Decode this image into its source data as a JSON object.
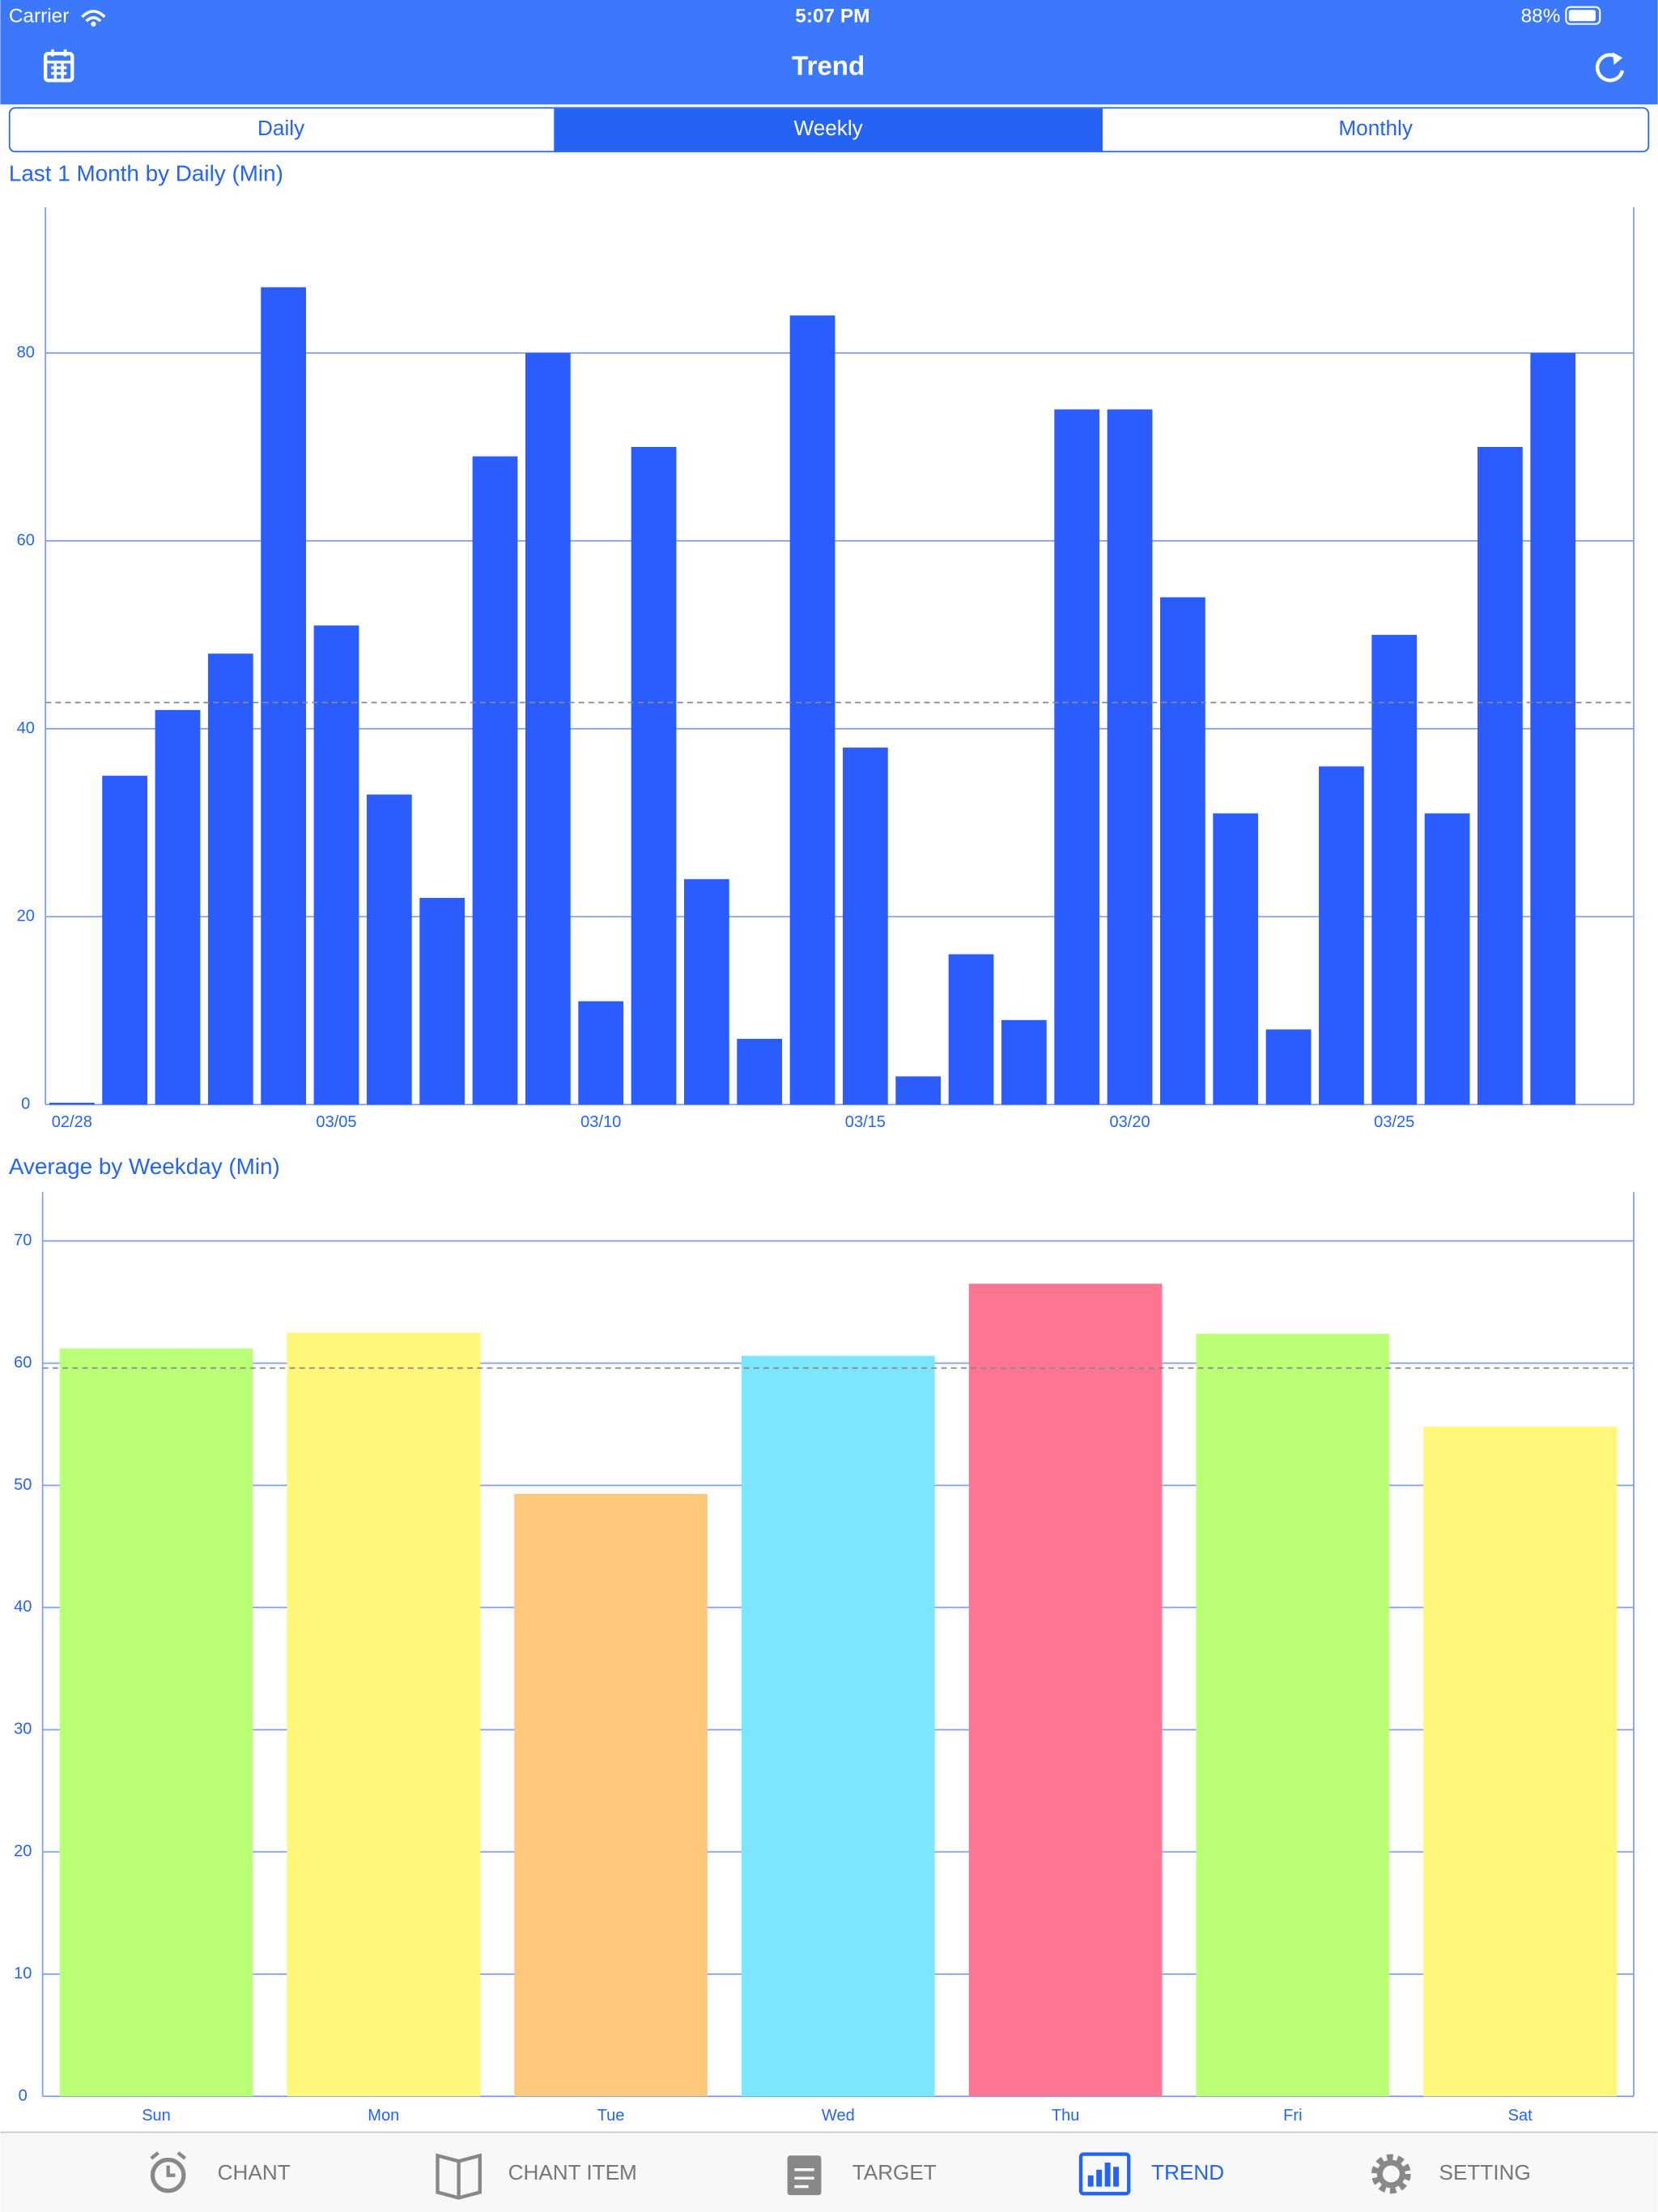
{
  "status_bar": {
    "carrier": "Carrier",
    "time": "5:07 PM",
    "battery": "88%"
  },
  "nav": {
    "title": "Trend"
  },
  "segments": [
    "Daily",
    "Weekly",
    "Monthly"
  ],
  "tabs": [
    "CHANT",
    "CHANT ITEM",
    "TARGET",
    "TREND",
    "SETTING"
  ],
  "chart_data": [
    {
      "type": "bar",
      "title": "Last 1 Month by Daily (Min)",
      "categories": [
        "02/28",
        null,
        null,
        null,
        null,
        "03/05",
        null,
        null,
        null,
        null,
        "03/10",
        null,
        null,
        null,
        null,
        "03/15",
        null,
        null,
        null,
        null,
        "03/20",
        null,
        null,
        null,
        null,
        "03/25",
        null,
        null,
        null
      ],
      "values": [
        0.2,
        35,
        42,
        48,
        87,
        51,
        33,
        22,
        69,
        80,
        11,
        70,
        24,
        7,
        84,
        38,
        3,
        16,
        9,
        74,
        74,
        54,
        31,
        8,
        36,
        50,
        31,
        70,
        80
      ],
      "color": "#2b5cff",
      "average": 42.8,
      "ylim": [
        0,
        95.5
      ],
      "yticks": [
        0,
        20,
        40,
        60,
        80
      ],
      "grid": true
    },
    {
      "type": "bar",
      "title": "Average by Weekday (Min)",
      "categories": [
        "Sun",
        "Mon",
        "Tue",
        "Wed",
        "Thu",
        "Fri",
        "Sat"
      ],
      "values": [
        61.2,
        62.5,
        49.3,
        60.6,
        66.5,
        62.4,
        54.8
      ],
      "colors": [
        "#bbff77",
        "#fff77a",
        "#fdc87c",
        "#7ce6fd",
        "#fd7590",
        "#bbff77",
        "#fff77a"
      ],
      "average": 59.6,
      "ylim": [
        0,
        74
      ],
      "yticks": [
        0,
        10,
        20,
        30,
        40,
        50,
        60,
        70
      ],
      "grid": true
    }
  ]
}
